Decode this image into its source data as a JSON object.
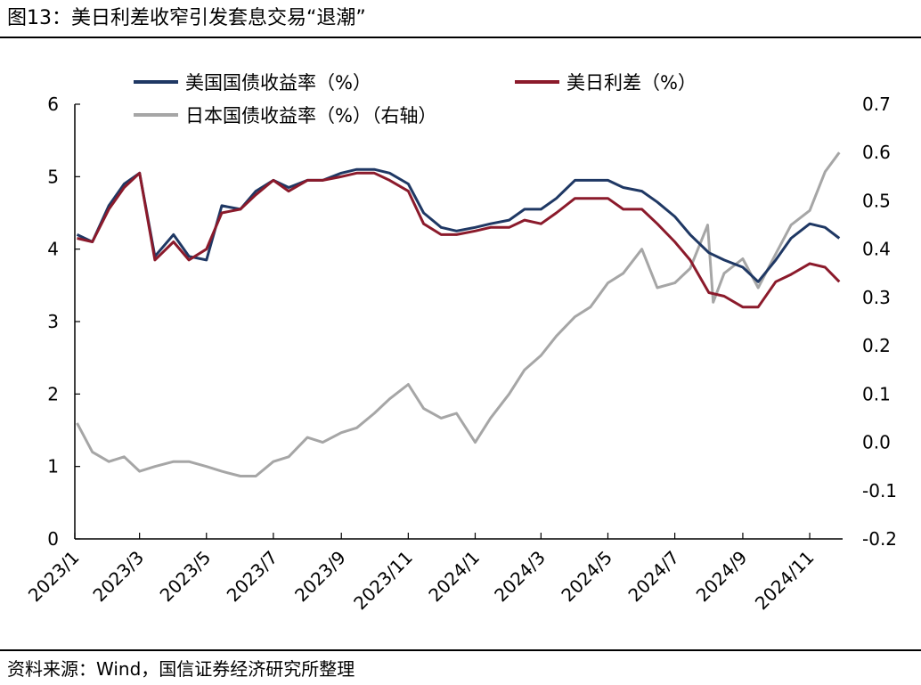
{
  "figure": {
    "title": "图13：美日利差收窄引发套息交易“退潮”",
    "source": "资料来源：Wind，国信证券经济研究所整理"
  },
  "chart_data": {
    "type": "line",
    "x_tick_labels": [
      "2023/1",
      "2023/3",
      "2023/5",
      "2023/7",
      "2023/9",
      "2023/11",
      "2024/1",
      "2024/3",
      "2024/5",
      "2024/7",
      "2024/9",
      "2024/11"
    ],
    "x_tick_dates": [
      "2023-01-01",
      "2023-03-01",
      "2023-05-01",
      "2023-07-01",
      "2023-09-01",
      "2023-11-01",
      "2024-01-01",
      "2024-03-01",
      "2024-05-01",
      "2024-07-01",
      "2024-09-01",
      "2024-11-01"
    ],
    "x_range": [
      "2023-01-01",
      "2024-12-01"
    ],
    "y_left": {
      "ticks": [
        0,
        1,
        2,
        3,
        4,
        5,
        6
      ],
      "ylim": [
        0,
        6
      ]
    },
    "y_right": {
      "ticks": [
        0.7,
        0.6,
        0.5,
        0.4,
        0.3,
        0.2,
        0.1,
        0.0,
        -0.1,
        -0.2
      ],
      "tick_labels": [
        "0.7",
        "0.6",
        "0.5",
        "0.4",
        "0.3",
        "0.2",
        "0.1",
        "0.0",
        "-0.1",
        "-0.2"
      ],
      "ylim": [
        -0.2,
        0.7
      ]
    },
    "legend": {
      "placement": "top-left"
    },
    "series": [
      {
        "name": "美国国债收益率（%）",
        "axis": "left",
        "color": "#1f3864",
        "x": [
          "2023-01-03",
          "2023-01-17",
          "2023-02-01",
          "2023-02-15",
          "2023-03-01",
          "2023-03-15",
          "2023-04-01",
          "2023-04-15",
          "2023-05-01",
          "2023-05-15",
          "2023-06-01",
          "2023-06-15",
          "2023-07-01",
          "2023-07-15",
          "2023-08-01",
          "2023-08-15",
          "2023-09-01",
          "2023-09-15",
          "2023-10-01",
          "2023-10-15",
          "2023-11-01",
          "2023-11-15",
          "2023-12-01",
          "2023-12-15",
          "2024-01-01",
          "2024-01-15",
          "2024-02-01",
          "2024-02-15",
          "2024-03-01",
          "2024-03-15",
          "2024-04-01",
          "2024-04-15",
          "2024-05-01",
          "2024-05-15",
          "2024-06-01",
          "2024-06-15",
          "2024-07-01",
          "2024-07-15",
          "2024-08-01",
          "2024-08-15",
          "2024-09-01",
          "2024-09-15",
          "2024-10-01",
          "2024-10-15",
          "2024-11-01",
          "2024-11-15",
          "2024-11-28"
        ],
        "values": [
          4.2,
          4.1,
          4.6,
          4.9,
          5.05,
          3.9,
          4.2,
          3.9,
          3.85,
          4.6,
          4.55,
          4.8,
          4.95,
          4.85,
          4.95,
          4.95,
          5.05,
          5.1,
          5.1,
          5.05,
          4.9,
          4.5,
          4.3,
          4.25,
          4.3,
          4.35,
          4.4,
          4.55,
          4.55,
          4.7,
          4.95,
          4.95,
          4.95,
          4.85,
          4.8,
          4.65,
          4.45,
          4.2,
          3.95,
          3.85,
          3.75,
          3.55,
          3.85,
          4.15,
          4.35,
          4.3,
          4.15
        ]
      },
      {
        "name": "美日利差（%）",
        "axis": "left",
        "color": "#8b1a2b",
        "x": [
          "2023-01-03",
          "2023-01-17",
          "2023-02-01",
          "2023-02-15",
          "2023-03-01",
          "2023-03-15",
          "2023-04-01",
          "2023-04-15",
          "2023-05-01",
          "2023-05-15",
          "2023-06-01",
          "2023-06-15",
          "2023-07-01",
          "2023-07-15",
          "2023-08-01",
          "2023-08-15",
          "2023-09-01",
          "2023-09-15",
          "2023-10-01",
          "2023-10-15",
          "2023-11-01",
          "2023-11-15",
          "2023-12-01",
          "2023-12-15",
          "2024-01-01",
          "2024-01-15",
          "2024-02-01",
          "2024-02-15",
          "2024-03-01",
          "2024-03-15",
          "2024-04-01",
          "2024-04-15",
          "2024-05-01",
          "2024-05-15",
          "2024-06-01",
          "2024-06-15",
          "2024-07-01",
          "2024-07-15",
          "2024-08-01",
          "2024-08-15",
          "2024-09-01",
          "2024-09-15",
          "2024-10-01",
          "2024-10-15",
          "2024-11-01",
          "2024-11-15",
          "2024-11-28"
        ],
        "values": [
          4.15,
          4.1,
          4.55,
          4.85,
          5.05,
          3.85,
          4.1,
          3.85,
          4.0,
          4.5,
          4.55,
          4.75,
          4.95,
          4.8,
          4.95,
          4.95,
          5.0,
          5.05,
          5.05,
          4.95,
          4.8,
          4.35,
          4.2,
          4.2,
          4.25,
          4.3,
          4.3,
          4.4,
          4.35,
          4.5,
          4.7,
          4.7,
          4.7,
          4.55,
          4.55,
          4.35,
          4.1,
          3.85,
          3.4,
          3.35,
          3.2,
          3.2,
          3.55,
          3.65,
          3.8,
          3.75,
          3.55
        ]
      },
      {
        "name": "日本国债收益率（%）（右轴）",
        "axis": "right",
        "color": "#a6a6a6",
        "x": [
          "2023-01-03",
          "2023-01-17",
          "2023-02-01",
          "2023-02-15",
          "2023-03-01",
          "2023-03-15",
          "2023-04-01",
          "2023-04-15",
          "2023-05-01",
          "2023-05-15",
          "2023-06-01",
          "2023-06-15",
          "2023-07-01",
          "2023-07-15",
          "2023-08-01",
          "2023-08-15",
          "2023-09-01",
          "2023-09-15",
          "2023-10-01",
          "2023-10-15",
          "2023-11-01",
          "2023-11-15",
          "2023-12-01",
          "2023-12-15",
          "2024-01-01",
          "2024-01-15",
          "2024-02-01",
          "2024-02-15",
          "2024-03-01",
          "2024-03-15",
          "2024-04-01",
          "2024-04-15",
          "2024-05-01",
          "2024-05-15",
          "2024-06-01",
          "2024-06-15",
          "2024-07-01",
          "2024-07-15",
          "2024-07-31",
          "2024-08-05",
          "2024-08-15",
          "2024-09-01",
          "2024-09-15",
          "2024-10-01",
          "2024-10-15",
          "2024-11-01",
          "2024-11-15",
          "2024-11-28"
        ],
        "values": [
          0.04,
          -0.02,
          -0.04,
          -0.03,
          -0.06,
          -0.05,
          -0.04,
          -0.04,
          -0.05,
          -0.06,
          -0.07,
          -0.07,
          -0.04,
          -0.03,
          0.01,
          0.0,
          0.02,
          0.03,
          0.06,
          0.09,
          0.12,
          0.07,
          0.05,
          0.06,
          0.0,
          0.05,
          0.1,
          0.15,
          0.18,
          0.22,
          0.26,
          0.28,
          0.33,
          0.35,
          0.4,
          0.32,
          0.33,
          0.36,
          0.45,
          0.29,
          0.35,
          0.38,
          0.32,
          0.39,
          0.45,
          0.48,
          0.56,
          0.6
        ]
      }
    ]
  }
}
